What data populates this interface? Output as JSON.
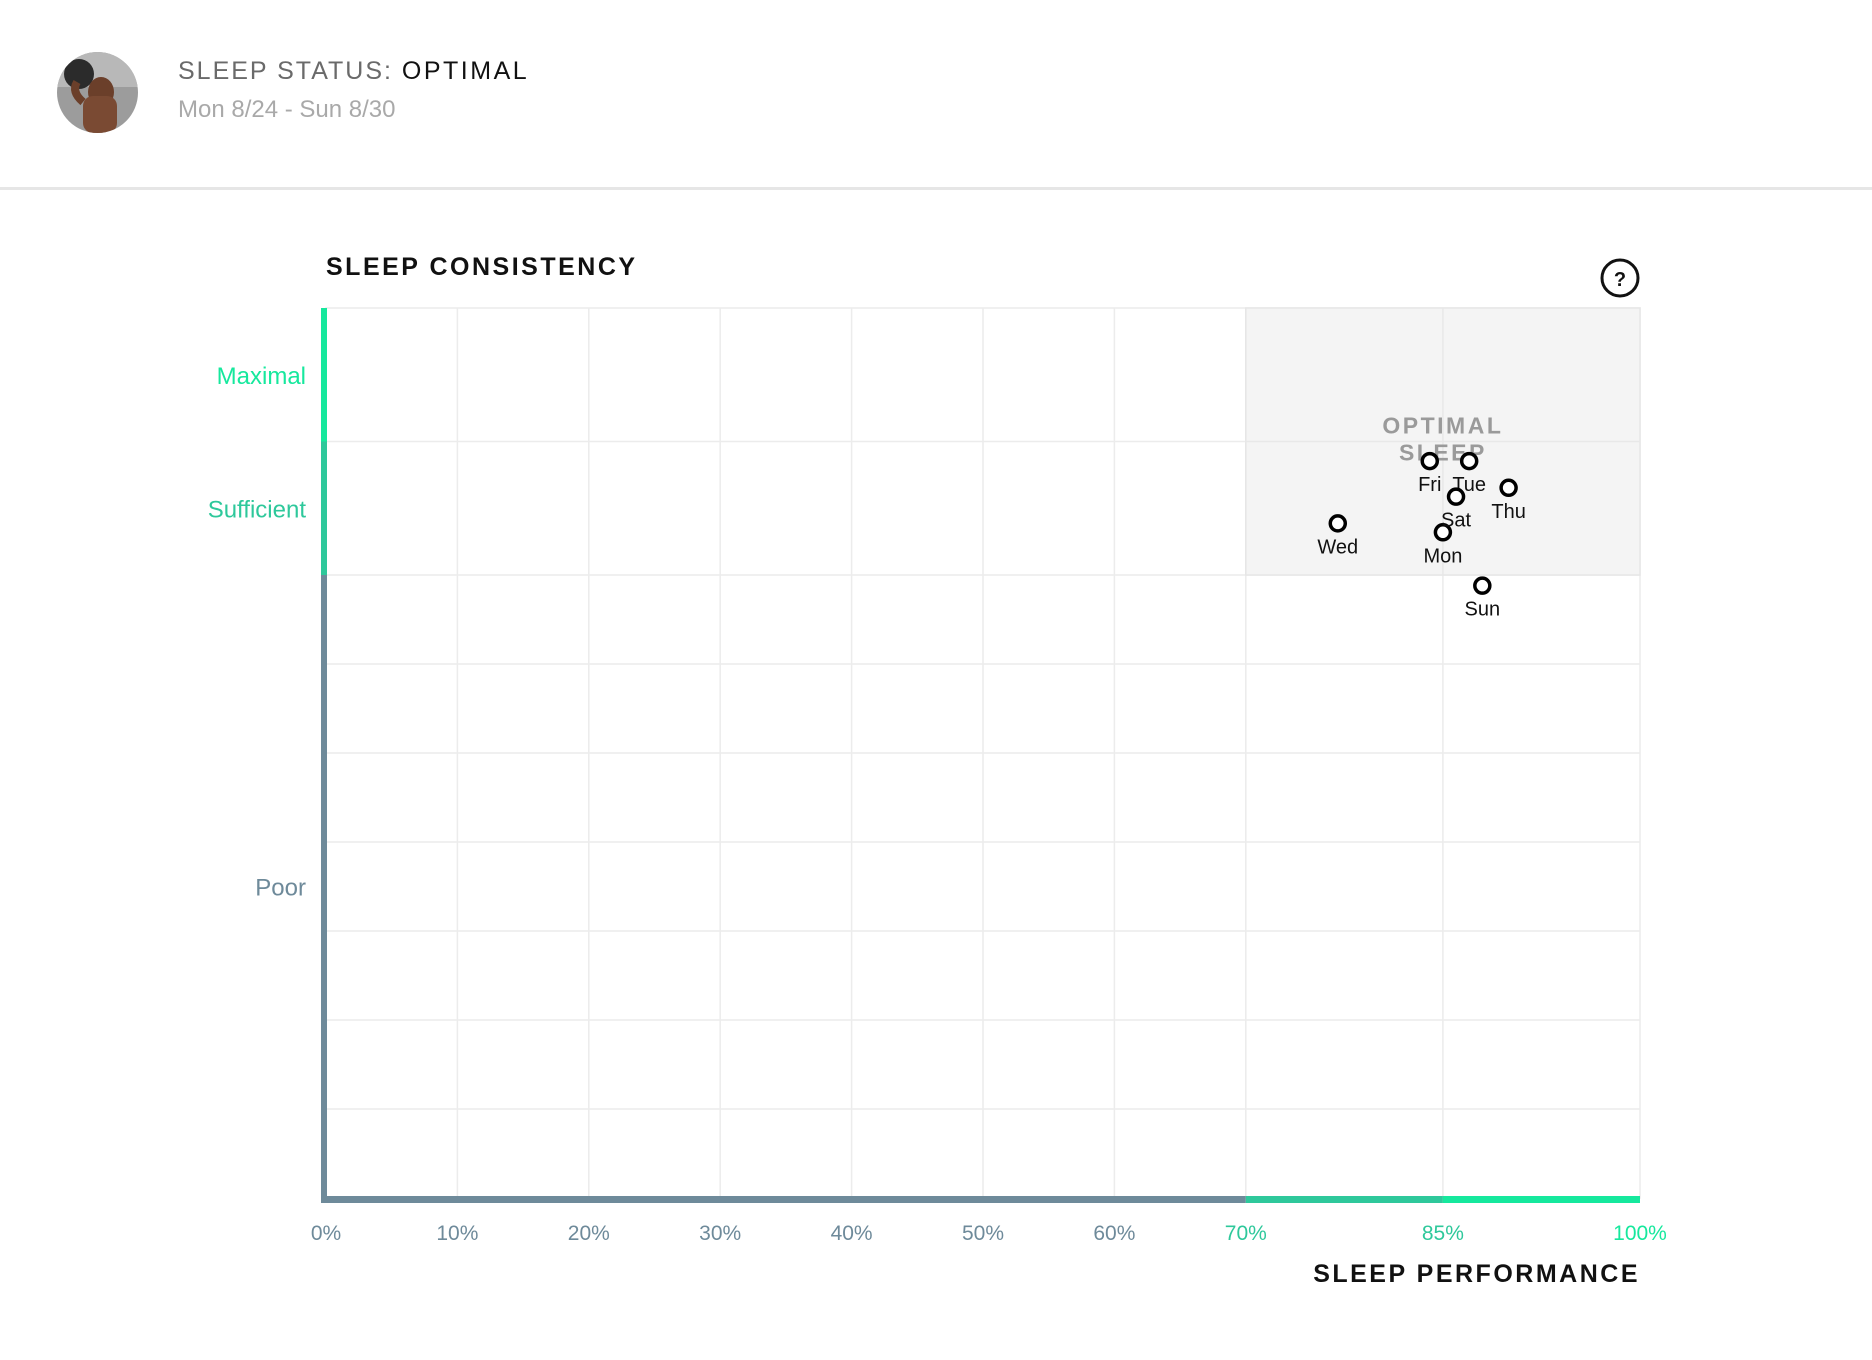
{
  "header": {
    "status_label": "SLEEP STATUS:",
    "status_value": "OPTIMAL",
    "date_range": "Mon 8/24 - Sun 8/30"
  },
  "help_icon": "?",
  "chart_data": {
    "type": "scatter",
    "title": "SLEEP CONSISTENCY",
    "xlabel": "SLEEP PERFORMANCE",
    "ylabel": "SLEEP CONSISTENCY",
    "xlim": [
      0,
      100
    ],
    "ylim": [
      0,
      100
    ],
    "x_ticks": [
      {
        "value": 0,
        "label": "0%",
        "zone": "poor"
      },
      {
        "value": 10,
        "label": "10%",
        "zone": "poor"
      },
      {
        "value": 20,
        "label": "20%",
        "zone": "poor"
      },
      {
        "value": 30,
        "label": "30%",
        "zone": "poor"
      },
      {
        "value": 40,
        "label": "40%",
        "zone": "poor"
      },
      {
        "value": 50,
        "label": "50%",
        "zone": "poor"
      },
      {
        "value": 60,
        "label": "60%",
        "zone": "poor"
      },
      {
        "value": 70,
        "label": "70%",
        "zone": "sufficient"
      },
      {
        "value": 85,
        "label": "85%",
        "zone": "sufficient"
      },
      {
        "value": 100,
        "label": "100%",
        "zone": "maximal"
      }
    ],
    "y_zones": [
      {
        "label": "Maximal",
        "from": 85,
        "to": 100,
        "color": "#16e89d"
      },
      {
        "label": "Sufficient",
        "from": 70,
        "to": 85,
        "color": "#2ec89b"
      },
      {
        "label": "Poor",
        "from": 0,
        "to": 70,
        "color": "#6e8a9a"
      }
    ],
    "x_zones": [
      {
        "from": 0,
        "to": 70,
        "color": "#6e8a9a"
      },
      {
        "from": 70,
        "to": 85,
        "color": "#2ec89b"
      },
      {
        "from": 85,
        "to": 100,
        "color": "#16e89d"
      }
    ],
    "optimal_region": {
      "label": "OPTIMAL SLEEP",
      "x": [
        70,
        100
      ],
      "y": [
        70,
        100
      ]
    },
    "points": [
      {
        "label": "Mon",
        "x": 85.0,
        "y": 74.8
      },
      {
        "label": "Tue",
        "x": 87.0,
        "y": 82.8
      },
      {
        "label": "Wed",
        "x": 77.0,
        "y": 75.8
      },
      {
        "label": "Thu",
        "x": 90.0,
        "y": 79.8
      },
      {
        "label": "Fri",
        "x": 84.0,
        "y": 82.8
      },
      {
        "label": "Sat",
        "x": 86.0,
        "y": 78.8
      },
      {
        "label": "Sun",
        "x": 88.0,
        "y": 68.8
      }
    ]
  },
  "colors": {
    "axis_poor": "#6e8a9a",
    "axis_sufficient": "#2ec89b",
    "axis_maximal": "#16e89d",
    "grid": "#ececec",
    "optimal_fill": "#f4f4f4"
  }
}
